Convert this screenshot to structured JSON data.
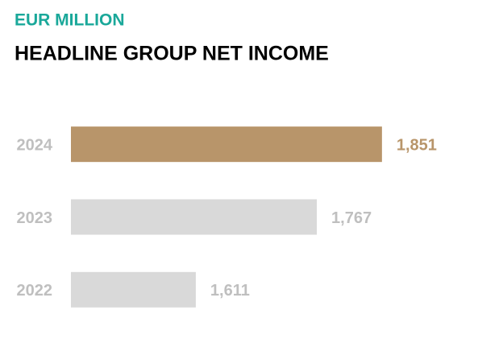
{
  "chart_data": {
    "type": "barh",
    "title": "EUR MILLION",
    "subtitle": "HEADLINE GROUP NET INCOME",
    "categories": [
      "2024",
      "2023",
      "2022"
    ],
    "values": [
      1851,
      1767,
      1611
    ],
    "value_labels": [
      "1,851",
      "1,767",
      "1,611"
    ],
    "colors": [
      "#b8956a",
      "#d9d9d9",
      "#d9d9d9"
    ],
    "label_colors": [
      "#b8956a",
      "#bfbfbf",
      "#bfbfbf"
    ],
    "category_color": "#bfbfbf",
    "xlim": [
      1450,
      1900
    ]
  }
}
